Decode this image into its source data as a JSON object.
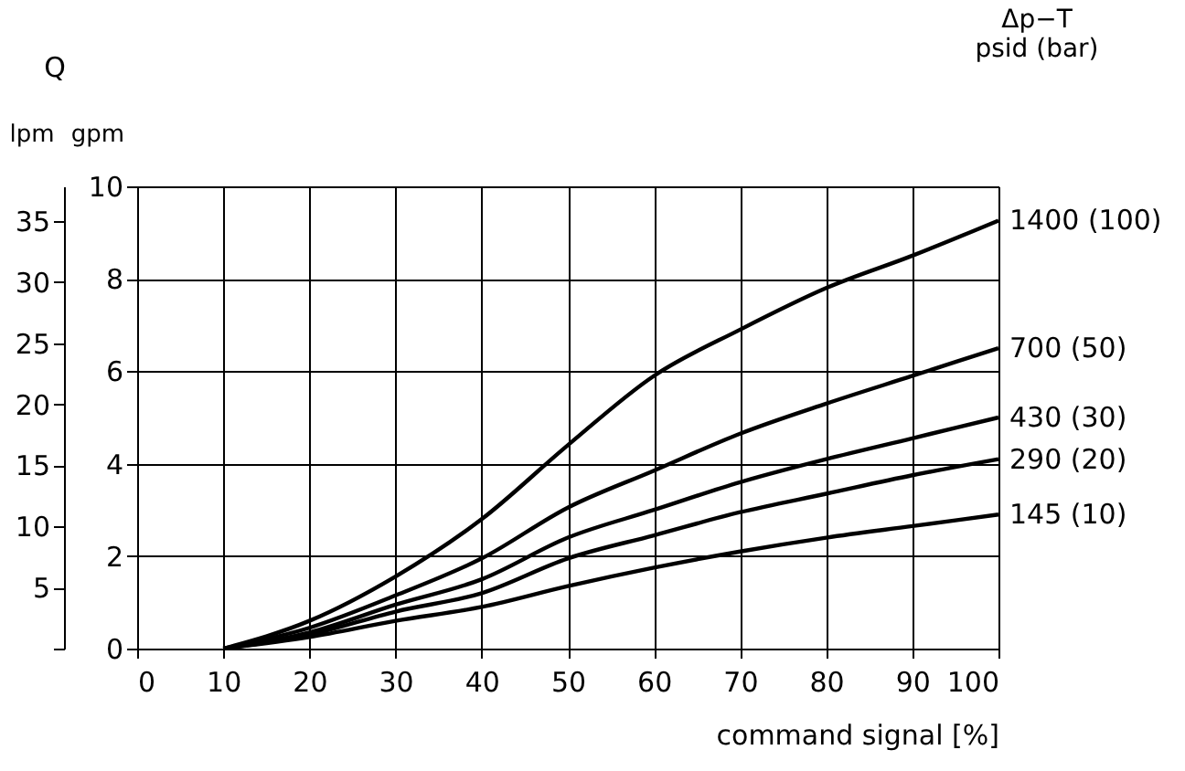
{
  "chart_data": {
    "type": "line",
    "xlabel": "command signal [%]",
    "ylabel": "gpm",
    "y2label": "lpm",
    "annotations": [
      "Q"
    ],
    "legend_title": "Δp−T\npsid (bar)",
    "x": [
      10,
      20,
      30,
      40,
      50,
      60,
      70,
      80,
      90,
      100
    ],
    "series": [
      {
        "name": "1400 (100)",
        "color": "#000000",
        "values": [
          0,
          0.6,
          1.56,
          2.8,
          4.4,
          5.9,
          6.9,
          7.8,
          8.5,
          9.26
        ]
      },
      {
        "name": "700 (50)",
        "color": "#000000",
        "values": [
          0,
          0.45,
          1.15,
          1.95,
          3.05,
          3.85,
          4.65,
          5.3,
          5.9,
          6.5
        ]
      },
      {
        "name": "430 (30)",
        "color": "#000000",
        "values": [
          0,
          0.35,
          0.95,
          1.5,
          2.4,
          3.0,
          3.6,
          4.1,
          4.55,
          5.0
        ]
      },
      {
        "name": "290 (20)",
        "color": "#000000",
        "values": [
          0,
          0.3,
          0.8,
          1.2,
          1.95,
          2.45,
          2.95,
          3.35,
          3.75,
          4.1
        ]
      },
      {
        "name": "145 (10)",
        "color": "#000000",
        "values": [
          0,
          0.25,
          0.6,
          0.9,
          1.35,
          1.75,
          2.1,
          2.4,
          2.65,
          2.9
        ]
      }
    ],
    "xlim": [
      0,
      100
    ],
    "xticks": [
      0,
      10,
      20,
      30,
      40,
      50,
      60,
      70,
      80,
      90,
      100
    ],
    "ylim": [
      0,
      10
    ],
    "yticks": [
      0,
      2,
      4,
      6,
      8,
      10
    ],
    "y2lim": [
      0,
      37.85
    ],
    "y2ticks": [
      {
        "value": 0,
        "label": null
      },
      5,
      10,
      15,
      20,
      25,
      30,
      35
    ],
    "grid": true,
    "legend": false,
    "marker": "none",
    "line_style": "solid"
  }
}
